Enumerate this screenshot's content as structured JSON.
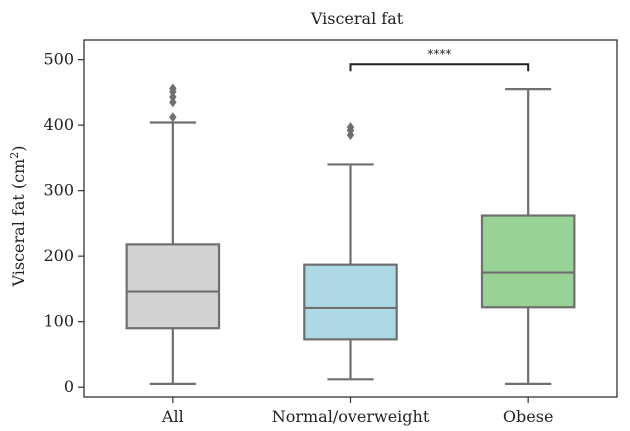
{
  "chart_data": {
    "type": "box",
    "title": "Visceral fat",
    "xlabel": "",
    "ylabel": "Visceral fat (cm",
    "ylabel_superscript": "2",
    "ylabel_close": ")",
    "ylim": [
      -15,
      530
    ],
    "yticks": [
      0,
      100,
      200,
      300,
      400,
      500
    ],
    "grid": false,
    "categories": [
      "All",
      "Normal/overweight",
      "Obese"
    ],
    "boxes": [
      {
        "category": "All",
        "color": "#d3d3d3",
        "whisker_low": 5,
        "q1": 90,
        "median": 146,
        "q3": 218,
        "whisker_high": 404,
        "outliers": [
          412,
          435,
          443,
          451,
          456
        ]
      },
      {
        "category": "Normal/overweight",
        "color": "#add8e6",
        "whisker_low": 12,
        "q1": 73,
        "median": 121,
        "q3": 187,
        "whisker_high": 340,
        "outliers": [
          385,
          392,
          397
        ]
      },
      {
        "category": "Obese",
        "color": "#98d294",
        "whisker_low": 5,
        "q1": 122,
        "median": 175,
        "q3": 262,
        "whisker_high": 455,
        "outliers": []
      }
    ],
    "significance": {
      "from": "Normal/overweight",
      "to": "Obese",
      "label": "****",
      "y": 493
    }
  },
  "colors": {
    "edge": "#6f6f6f",
    "axis": "#333333",
    "outlier": "#6f6f6f"
  }
}
